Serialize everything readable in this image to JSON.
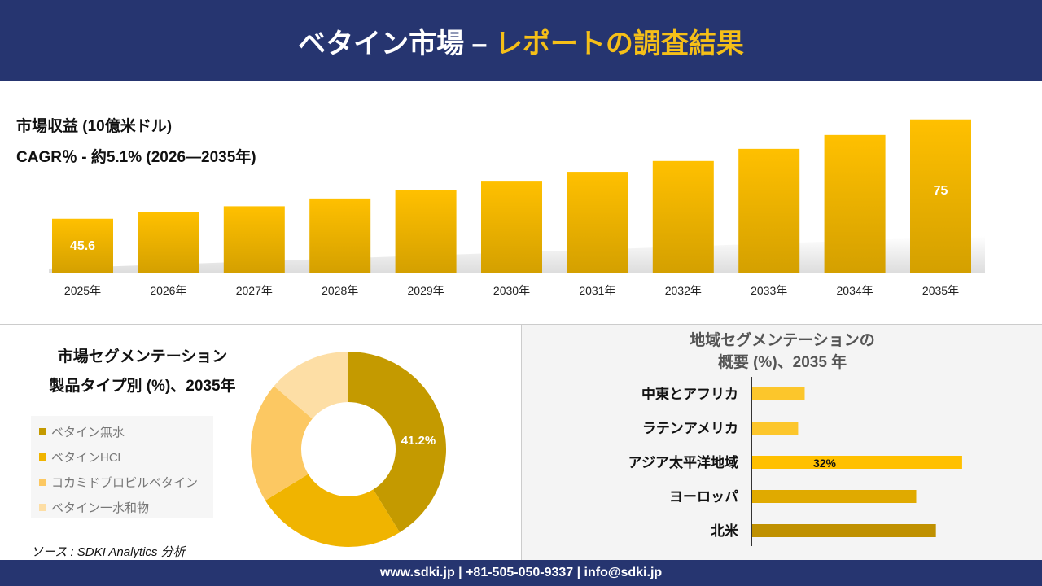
{
  "header": {
    "title_main": "ベタイン市場 –",
    "title_accent": "レポートの調査結果"
  },
  "colors": {
    "header_bg": "#263570",
    "accent": "#f5bf18"
  },
  "chart_data": [
    {
      "type": "bar",
      "title": "市場収益 (10億米ドル)",
      "subtitle": "CAGR％ - 約5.1% (2026—2035年)",
      "categories": [
        "2025年",
        "2026年",
        "2027年",
        "2028年",
        "2029年",
        "2030年",
        "2031年",
        "2032年",
        "2033年",
        "2034年",
        "2035年"
      ],
      "values": [
        45.6,
        47.5,
        49.3,
        51.6,
        54.0,
        56.6,
        59.5,
        62.7,
        66.3,
        70.4,
        75
      ],
      "data_labels": {
        "0": "45.6",
        "10": "75"
      }
    },
    {
      "type": "pie",
      "donut": true,
      "title": "市場セグメンテーション",
      "subtitle": "製品タイプ別 (%)、2035年",
      "series": [
        {
          "name": "ベタイン無水",
          "value": 41.2,
          "color": "#c49a00"
        },
        {
          "name": "ベタインHCl",
          "value": 25,
          "color": "#f0b400"
        },
        {
          "name": "コカミドプロピルベタイン",
          "value": 20,
          "color": "#fcc862"
        },
        {
          "name": "ベタイン一水和物",
          "value": 13.8,
          "color": "#fddea5"
        }
      ],
      "data_label": "41.2%"
    },
    {
      "type": "bar",
      "orientation": "horizontal",
      "title_line1": "地域セグメンテーションの",
      "title_line2": "概要 (%)、2035 年",
      "categories": [
        "中東とアフリカ",
        "ラテンアメリカ",
        "アジア太平洋地域",
        "ヨーロッパ",
        "北米"
      ],
      "values": [
        8,
        7,
        32,
        25,
        28
      ],
      "colors": [
        "#fcc62b",
        "#fcc62b",
        "#ffc000",
        "#e0aa00",
        "#bf9000"
      ],
      "data_label": "32%"
    }
  ],
  "source": "ソース : SDKI Analytics 分析",
  "footer": "www.sdki.jp | +81-505-050-9337 | info@sdki.jp"
}
